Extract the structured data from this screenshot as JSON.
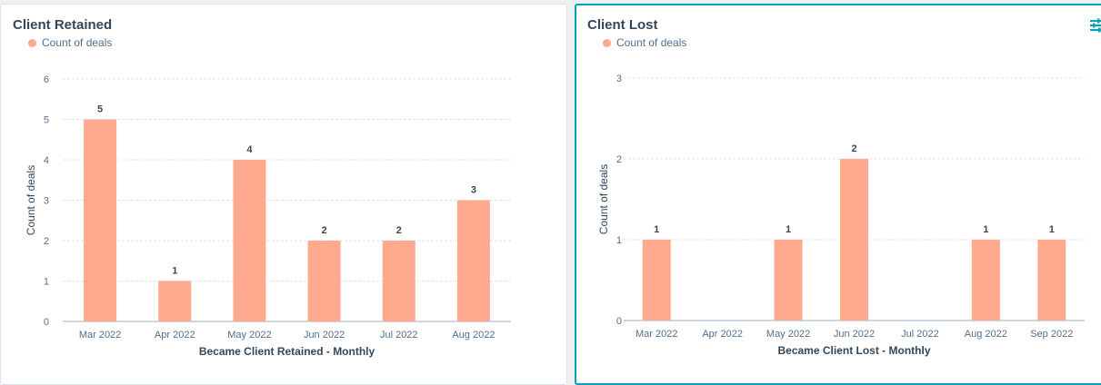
{
  "colors": {
    "bar": "#ffa98f",
    "grid": "#dfe3eb",
    "axis": "#99afc4",
    "accent": "#00a4bd"
  },
  "charts": {
    "retained": {
      "title": "Client Retained",
      "legend_label": "Count of deals",
      "ylabel": "Count of deals",
      "xlabel": "Became Client Retained - Monthly"
    },
    "lost": {
      "title": "Client Lost",
      "legend_label": "Count of deals",
      "ylabel": "Count of deals",
      "xlabel": "Became Client Lost - Monthly",
      "settings_icon": "sliders-icon"
    }
  },
  "chart_data": [
    {
      "type": "bar",
      "title": "Client Retained",
      "categories": [
        "Mar 2022",
        "Apr 2022",
        "May 2022",
        "Jun 2022",
        "Jul 2022",
        "Aug 2022"
      ],
      "series": [
        {
          "name": "Count of deals",
          "values": [
            5,
            1,
            4,
            2,
            2,
            3
          ]
        }
      ],
      "xlabel": "Became Client Retained - Monthly",
      "ylabel": "Count of deals",
      "ylim": [
        0,
        6
      ],
      "yticks": [
        0,
        1,
        2,
        3,
        4,
        5,
        6
      ],
      "grid": true,
      "legend": "top-left",
      "data_labels": true
    },
    {
      "type": "bar",
      "title": "Client Lost",
      "categories": [
        "Mar 2022",
        "Apr 2022",
        "May 2022",
        "Jun 2022",
        "Jul 2022",
        "Aug 2022",
        "Sep 2022"
      ],
      "series": [
        {
          "name": "Count of deals",
          "values": [
            1,
            0,
            1,
            2,
            0,
            1,
            1
          ]
        }
      ],
      "xlabel": "Became Client Lost - Monthly",
      "ylabel": "Count of deals",
      "ylim": [
        0,
        3
      ],
      "yticks": [
        0,
        1,
        2,
        3
      ],
      "grid": true,
      "legend": "top-left",
      "data_labels": true
    }
  ]
}
